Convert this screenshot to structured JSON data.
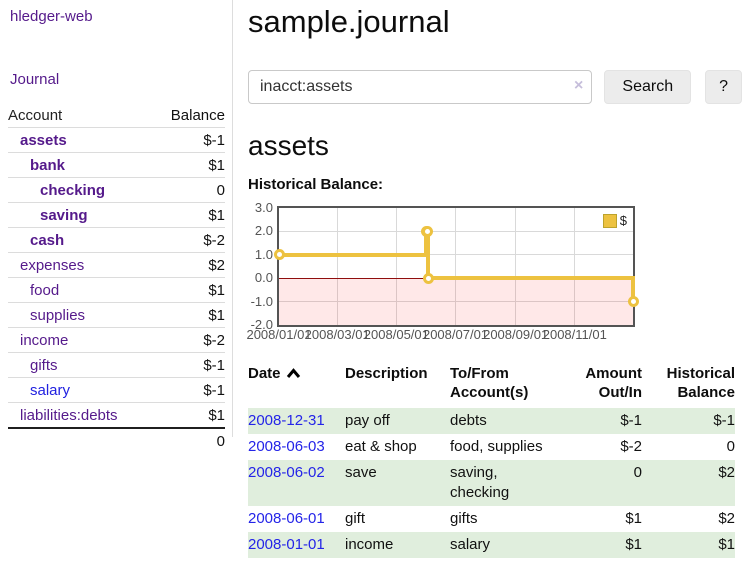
{
  "app": {
    "brand": "hledger-web",
    "nav_journal": "Journal"
  },
  "sidebar": {
    "header": {
      "account": "Account",
      "balance": "Balance"
    },
    "rows": [
      {
        "name": "assets",
        "balance": "$-1"
      },
      {
        "name": "bank",
        "balance": "$1"
      },
      {
        "name": "checking",
        "balance": "0"
      },
      {
        "name": "saving",
        "balance": "$1"
      },
      {
        "name": "cash",
        "balance": "$-2"
      },
      {
        "name": "expenses",
        "balance": "$2"
      },
      {
        "name": "food",
        "balance": "$1"
      },
      {
        "name": "supplies",
        "balance": "$1"
      },
      {
        "name": "income",
        "balance": "$-2"
      },
      {
        "name": "gifts",
        "balance": "$-1"
      },
      {
        "name": "salary",
        "balance": "$-1"
      },
      {
        "name": "liabilities:debts",
        "balance": "$1"
      }
    ],
    "total": "0"
  },
  "header": {
    "title": "sample.journal"
  },
  "search": {
    "value": "inacct:assets",
    "clear_icon": "×",
    "button": "Search",
    "help_button": "?"
  },
  "account_page": {
    "title": "assets",
    "chart_label": "Historical Balance:"
  },
  "chart_data": {
    "type": "line",
    "title": "Historical Balance",
    "step": true,
    "series": [
      {
        "name": "$",
        "color": "#EDC240",
        "points": [
          [
            "2008-01-01",
            1
          ],
          [
            "2008-06-01",
            2
          ],
          [
            "2008-06-02",
            2
          ],
          [
            "2008-06-03",
            0
          ],
          [
            "2008-12-31",
            -1
          ]
        ]
      }
    ],
    "ylim": [
      -2,
      3
    ],
    "yticks": [
      "3.0",
      "2.0",
      "1.0",
      "0.0",
      "-1.0",
      "-2.0"
    ],
    "xticks": [
      "2008/01/01",
      "2008/03/01",
      "2008/05/01",
      "2008/07/01",
      "2008/09/01",
      "2008/11/01"
    ],
    "xrange": [
      "2008-01-01",
      "2008-12-31"
    ],
    "negative_region": {
      "fill": "rgba(255,0,0,0.09)",
      "line": "#8F0D0D"
    },
    "legend": {
      "label": "$",
      "position": "top-right"
    },
    "grid": true
  },
  "register": {
    "columns": {
      "date": "Date",
      "description": "Description",
      "account": "To/From\nAccount(s)",
      "amount": "Amount\nOut/In",
      "balance": "Historical\nBalance"
    },
    "rows": [
      {
        "date": "2008-12-31",
        "description": "pay off",
        "accounts": "debts",
        "amount": "$-1",
        "balance": "$-1"
      },
      {
        "date": "2008-06-03",
        "description": "eat & shop",
        "accounts": "food, supplies",
        "amount": "$-2",
        "balance": "0"
      },
      {
        "date": "2008-06-02",
        "description": "save",
        "accounts": "saving, checking",
        "amount": "0",
        "balance": "$2"
      },
      {
        "date": "2008-06-01",
        "description": "gift",
        "accounts": "gifts",
        "amount": "$1",
        "balance": "$2"
      },
      {
        "date": "2008-01-01",
        "description": "income",
        "accounts": "salary",
        "amount": "$1",
        "balance": "$1"
      }
    ]
  }
}
